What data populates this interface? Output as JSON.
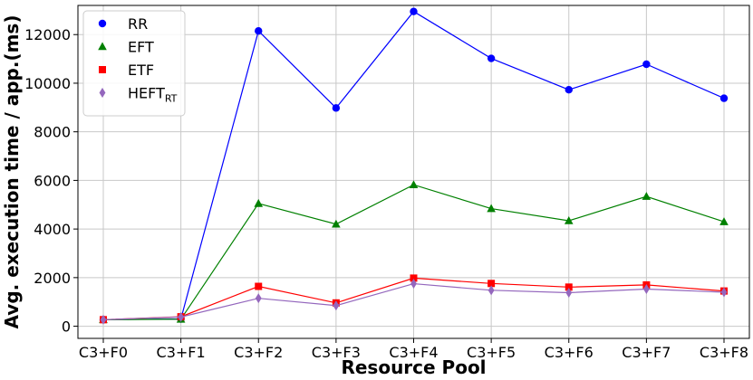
{
  "chart_data": {
    "type": "line",
    "title": "",
    "xlabel": "Resource Pool",
    "ylabel": "Avg. execution time / app.(ms)",
    "categories": [
      "C3+F0",
      "C3+F1",
      "C3+F2",
      "C3+F3",
      "C3+F4",
      "C3+F5",
      "C3+F6",
      "C3+F7",
      "C3+F8"
    ],
    "ylim": [
      -500,
      13200
    ],
    "yticks": [
      0,
      2000,
      4000,
      6000,
      8000,
      10000,
      12000
    ],
    "grid": true,
    "legend_position": "top-left",
    "series": [
      {
        "name": "RR",
        "subscript": "",
        "color": "#0000ff",
        "marker": "circle",
        "values": [
          270,
          300,
          12150,
          8980,
          12950,
          11020,
          9730,
          10780,
          9380
        ]
      },
      {
        "name": "EFT",
        "subscript": "",
        "color": "#008000",
        "marker": "triangle",
        "values": [
          270,
          290,
          5050,
          4200,
          5820,
          4840,
          4340,
          5340,
          4300
        ]
      },
      {
        "name": "ETF",
        "subscript": "",
        "color": "#ff0000",
        "marker": "square",
        "values": [
          270,
          390,
          1640,
          960,
          1980,
          1760,
          1610,
          1700,
          1450
        ]
      },
      {
        "name": "HEFT",
        "subscript": "RT",
        "color": "#9467bd",
        "marker": "diamond",
        "values": [
          270,
          380,
          1150,
          850,
          1750,
          1480,
          1380,
          1530,
          1400
        ]
      }
    ]
  }
}
